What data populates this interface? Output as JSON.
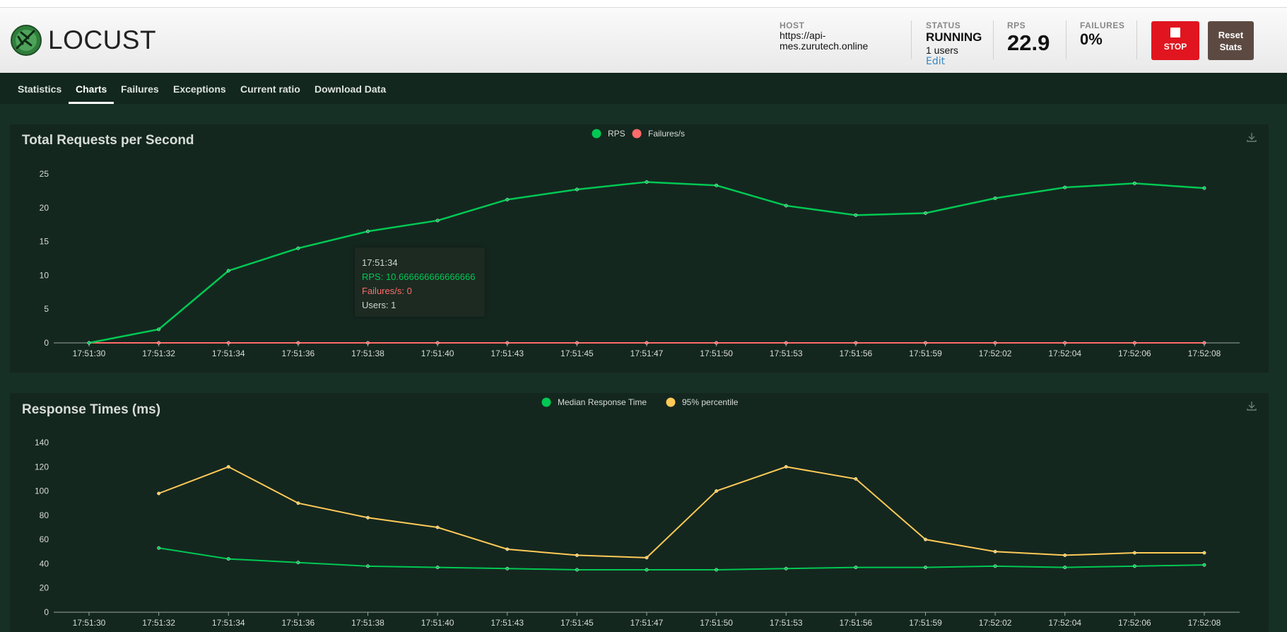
{
  "app": {
    "logo_text": "LOCUST"
  },
  "stats": {
    "host_label": "HOST",
    "host_value": "https://api-mes.zurutech.online",
    "status_label": "STATUS",
    "status_value": "RUNNING",
    "users_text": "1 users",
    "edit_label": "Edit",
    "rps_label": "RPS",
    "rps_value": "22.9",
    "failures_label": "FAILURES",
    "failures_value": "0%"
  },
  "buttons": {
    "stop_label": "STOP",
    "reset_line1": "Reset",
    "reset_line2": "Stats"
  },
  "tabs": [
    "Statistics",
    "Charts",
    "Failures",
    "Exceptions",
    "Current ratio",
    "Download Data"
  ],
  "colors": {
    "rps": "#00c853",
    "failures": "#ff6b6b",
    "median": "#00c853",
    "p95": "#ffca57"
  },
  "tooltip": {
    "time": "17:51:34",
    "rps": "RPS: 10.666666666666666",
    "failures": "Failures/s: 0",
    "users": "Users: 1"
  },
  "chart_data": [
    {
      "type": "line",
      "title": "Total Requests per Second",
      "categories": [
        "17:51:30",
        "17:51:32",
        "17:51:34",
        "17:51:36",
        "17:51:38",
        "17:51:40",
        "17:51:43",
        "17:51:45",
        "17:51:47",
        "17:51:50",
        "17:51:53",
        "17:51:56",
        "17:51:59",
        "17:52:02",
        "17:52:04",
        "17:52:06",
        "17:52:08"
      ],
      "series": [
        {
          "name": "RPS",
          "values": [
            0,
            2,
            10.67,
            14,
            16.5,
            18.1,
            21.2,
            22.7,
            23.8,
            23.3,
            20.3,
            18.9,
            19.2,
            21.4,
            23.0,
            23.6,
            22.9
          ]
        },
        {
          "name": "Failures/s",
          "values": [
            0,
            0,
            0,
            0,
            0,
            0,
            0,
            0,
            0,
            0,
            0,
            0,
            0,
            0,
            0,
            0,
            0
          ]
        }
      ],
      "yticks": [
        0,
        5,
        10,
        15,
        20,
        25
      ],
      "ylim": [
        0,
        25
      ],
      "legend": "top-center"
    },
    {
      "type": "line",
      "title": "Response Times (ms)",
      "categories": [
        "17:51:30",
        "17:51:32",
        "17:51:34",
        "17:51:36",
        "17:51:38",
        "17:51:40",
        "17:51:43",
        "17:51:45",
        "17:51:47",
        "17:51:50",
        "17:51:53",
        "17:51:56",
        "17:51:59",
        "17:52:02",
        "17:52:04",
        "17:52:06",
        "17:52:08"
      ],
      "series": [
        {
          "name": "Median Response Time",
          "values": [
            null,
            53,
            44,
            41,
            38,
            37,
            36,
            35,
            35,
            35,
            36,
            37,
            37,
            38,
            37,
            38,
            39
          ]
        },
        {
          "name": "95% percentile",
          "values": [
            null,
            98,
            120,
            90,
            78,
            70,
            52,
            47,
            45,
            100,
            120,
            110,
            60,
            50,
            47,
            49,
            49
          ]
        }
      ],
      "yticks": [
        0,
        20,
        40,
        60,
        80,
        100,
        120,
        140
      ],
      "ylim": [
        0,
        140
      ],
      "legend": "top-center"
    }
  ]
}
